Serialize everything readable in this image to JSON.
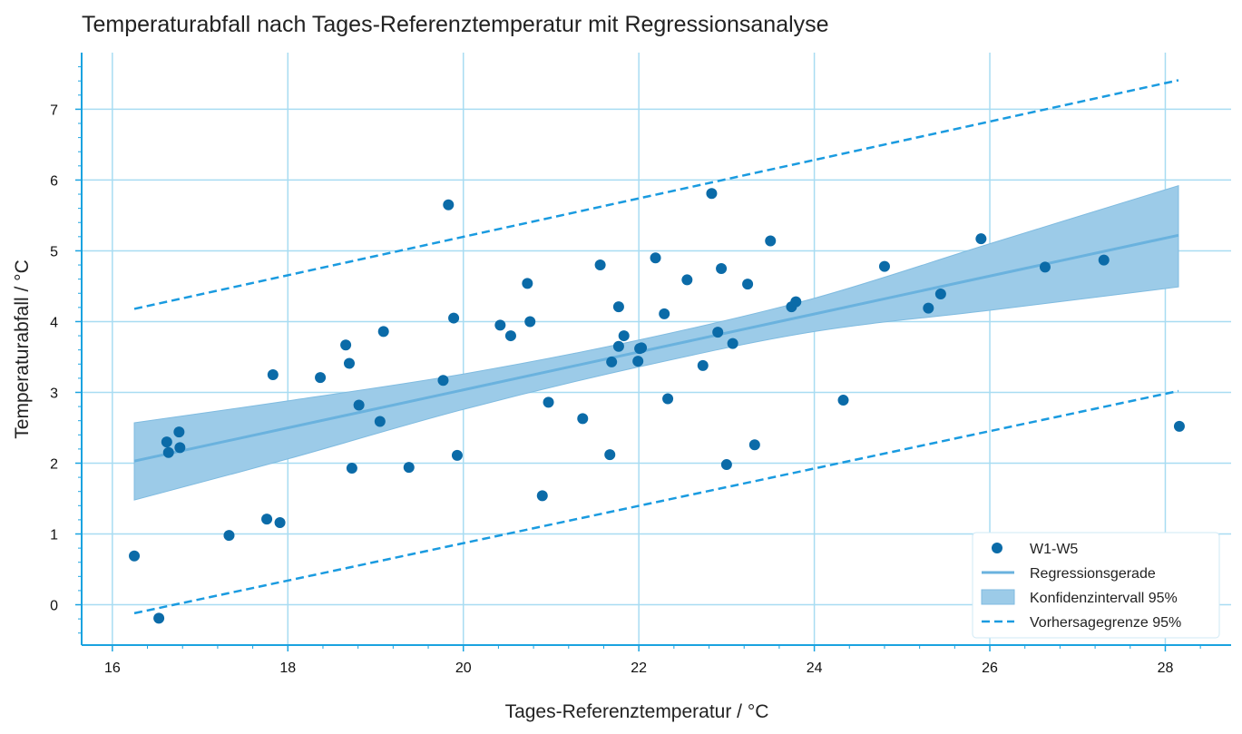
{
  "chart_data": {
    "type": "scatter",
    "title": "Temperaturabfall nach Tages-Referenztemperatur mit Regressionsanalyse",
    "xlabel": "Tages-Referenztemperatur / °C",
    "ylabel": "Temperaturabfall / °C",
    "xlim": [
      15.65,
      28.75
    ],
    "ylim": [
      -0.57,
      7.8
    ],
    "xticks": [
      16,
      18,
      20,
      22,
      24,
      26,
      28
    ],
    "yticks": [
      0,
      1,
      2,
      3,
      4,
      5,
      6,
      7
    ],
    "grid": true,
    "legend_position": "bottom-right",
    "colors": {
      "points": "#0b6ba8",
      "regression": "#6ab2de",
      "confidence": "#9ccbe8",
      "prediction": "#1a9be0",
      "grid": "#a8dcf2",
      "axis": "#1aa3e0"
    },
    "series": [
      {
        "name": "W1-W5",
        "kind": "scatter",
        "points": [
          [
            16.25,
            0.69
          ],
          [
            16.53,
            -0.19
          ],
          [
            16.62,
            2.3
          ],
          [
            16.64,
            2.15
          ],
          [
            16.76,
            2.44
          ],
          [
            16.77,
            2.22
          ],
          [
            17.33,
            0.98
          ],
          [
            17.76,
            1.21
          ],
          [
            17.83,
            3.25
          ],
          [
            17.91,
            1.16
          ],
          [
            18.37,
            3.21
          ],
          [
            18.66,
            3.67
          ],
          [
            18.7,
            3.41
          ],
          [
            18.73,
            1.93
          ],
          [
            18.81,
            2.82
          ],
          [
            19.05,
            2.59
          ],
          [
            19.09,
            3.86
          ],
          [
            19.38,
            1.94
          ],
          [
            19.77,
            3.17
          ],
          [
            19.83,
            5.65
          ],
          [
            19.89,
            4.05
          ],
          [
            19.93,
            2.11
          ],
          [
            20.42,
            3.95
          ],
          [
            20.54,
            3.8
          ],
          [
            20.73,
            4.54
          ],
          [
            20.76,
            4.0
          ],
          [
            20.9,
            1.54
          ],
          [
            20.97,
            2.86
          ],
          [
            21.36,
            2.63
          ],
          [
            21.56,
            4.8
          ],
          [
            21.67,
            2.12
          ],
          [
            21.69,
            3.43
          ],
          [
            21.77,
            4.21
          ],
          [
            21.77,
            3.65
          ],
          [
            21.83,
            3.8
          ],
          [
            21.99,
            3.44
          ],
          [
            22.01,
            3.62
          ],
          [
            22.03,
            3.63
          ],
          [
            22.19,
            4.9
          ],
          [
            22.29,
            4.11
          ],
          [
            22.33,
            2.91
          ],
          [
            22.55,
            4.59
          ],
          [
            22.73,
            3.38
          ],
          [
            22.83,
            5.81
          ],
          [
            22.9,
            3.85
          ],
          [
            22.94,
            4.75
          ],
          [
            23.0,
            1.98
          ],
          [
            23.07,
            3.69
          ],
          [
            23.24,
            4.53
          ],
          [
            23.32,
            2.26
          ],
          [
            23.5,
            5.14
          ],
          [
            23.74,
            4.21
          ],
          [
            23.79,
            4.28
          ],
          [
            24.33,
            2.89
          ],
          [
            24.8,
            4.78
          ],
          [
            25.3,
            4.19
          ],
          [
            25.44,
            4.39
          ],
          [
            25.9,
            5.17
          ],
          [
            26.63,
            4.77
          ],
          [
            27.3,
            4.87
          ],
          [
            28.16,
            2.52
          ]
        ]
      },
      {
        "name": "Regressionsgerade",
        "kind": "line",
        "x": [
          16.25,
          28.15
        ],
        "y": [
          2.03,
          5.22
        ]
      },
      {
        "name": "Konfidenzintervall 95%",
        "kind": "band",
        "x": [
          16.25,
          18,
          20,
          22,
          24,
          26,
          28.15
        ],
        "lower": [
          1.48,
          2.06,
          2.76,
          3.36,
          3.86,
          4.16,
          4.49
        ],
        "upper": [
          2.57,
          2.88,
          3.26,
          3.74,
          4.33,
          5.1,
          5.92
        ]
      },
      {
        "name": "Vorhersagegrenze 95%",
        "kind": "dashed",
        "upper": {
          "x": [
            16.25,
            28.15
          ],
          "y": [
            4.18,
            7.41
          ]
        },
        "lower": {
          "x": [
            16.25,
            28.15
          ],
          "y": [
            -0.12,
            3.02
          ]
        }
      }
    ]
  }
}
